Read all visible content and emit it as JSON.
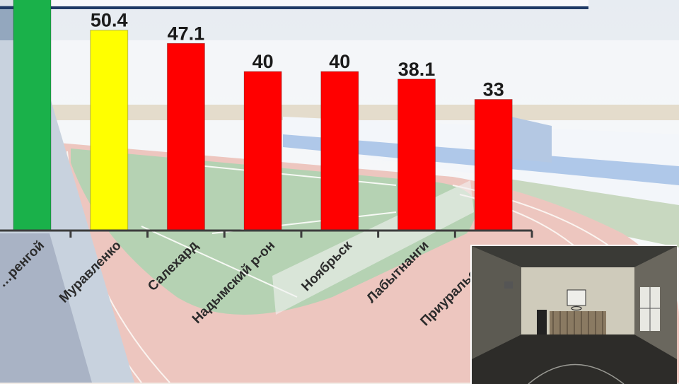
{
  "chart_data": {
    "type": "bar",
    "categories": [
      "…ренгой",
      "Муравленко",
      "Салехард",
      "Надымский р-он",
      "Ноябрьск",
      "Лабытнанги",
      "Приуральский …"
    ],
    "values": [
      null,
      50.4,
      47.1,
      40,
      40,
      38.1,
      33
    ],
    "value_labels": [
      "",
      "50.4",
      "47.1",
      "40",
      "40",
      "38.1",
      "33"
    ],
    "bar_colors": [
      "#1ab14a",
      "#ffff00",
      "#ff0000",
      "#ff0000",
      "#ff0000",
      "#ff0000",
      "#ff0000"
    ],
    "title": "",
    "xlabel": "",
    "ylabel": "",
    "ylim": [
      0,
      58
    ],
    "grid": false,
    "legend": "none"
  },
  "colors": {
    "accent_line": "#1f3a66",
    "axis": "#3d3d3d"
  }
}
